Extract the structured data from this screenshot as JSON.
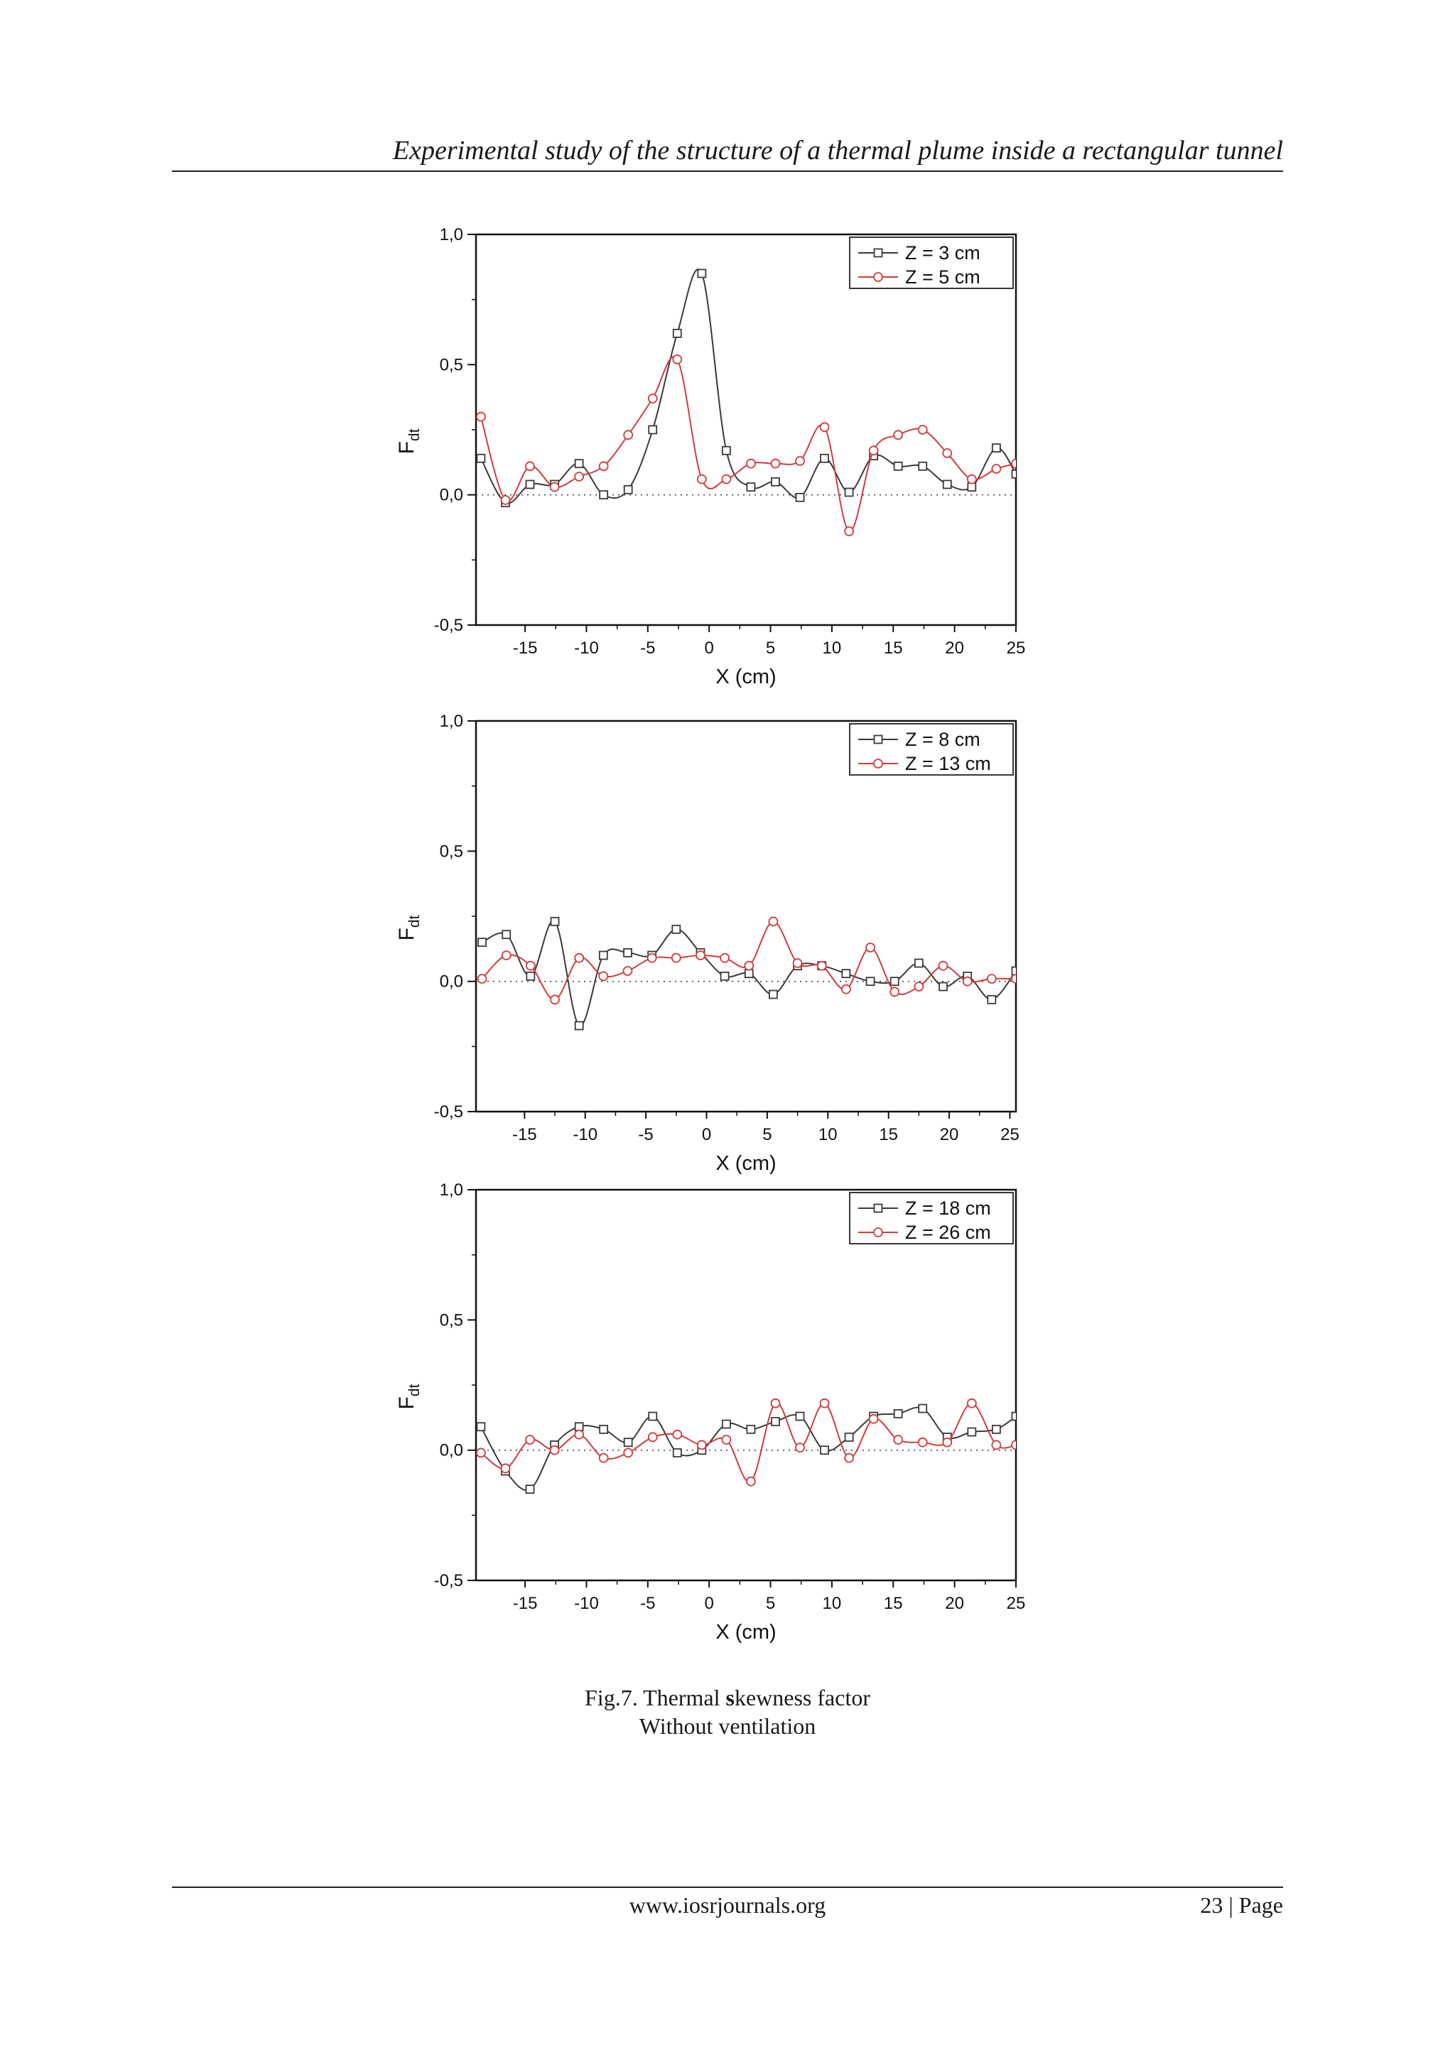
{
  "header": {
    "running_title": "Experimental study of the structure of a thermal plume inside a rectangular tunnel"
  },
  "figure": {
    "caption_prefix": "Fig.7. Thermal ",
    "caption_bold": "s",
    "caption_rest": "kewness factor",
    "caption_line2": "Without ventilation"
  },
  "footer": {
    "url": "www.iosrjournals.org",
    "page": "23 | Page"
  },
  "colors": {
    "series1": "#3a3a3a",
    "series2": "#d23c3c"
  },
  "chart_data": [
    {
      "type": "line",
      "xlabel": "X (cm)",
      "ylabel": "F",
      "ylabel_sub": "dt",
      "xlim": [
        -19,
        25
      ],
      "ylim": [
        -0.5,
        1.0
      ],
      "x_ticks": [
        -15,
        -10,
        -5,
        0,
        5,
        10,
        15,
        20,
        25
      ],
      "y_ticks": [
        -0.5,
        0.0,
        0.5,
        1.0
      ],
      "y_tick_labels": [
        "-0,5",
        "0,0",
        "0,5",
        "1,0"
      ],
      "legend_position": "top-right",
      "grid": false,
      "series": [
        {
          "name": "Z = 3 cm",
          "marker": "square",
          "points": [
            [
              -18.6,
              0.14
            ],
            [
              -16.6,
              -0.03
            ],
            [
              -14.6,
              0.04
            ],
            [
              -12.6,
              0.04
            ],
            [
              -10.6,
              0.12
            ],
            [
              -8.6,
              0.0
            ],
            [
              -6.6,
              0.02
            ],
            [
              -4.6,
              0.25
            ],
            [
              -2.6,
              0.62
            ],
            [
              -0.6,
              0.85
            ],
            [
              1.4,
              0.17
            ],
            [
              3.4,
              0.03
            ],
            [
              5.4,
              0.05
            ],
            [
              7.4,
              -0.01
            ],
            [
              9.4,
              0.14
            ],
            [
              11.4,
              0.01
            ],
            [
              13.4,
              0.15
            ],
            [
              15.4,
              0.11
            ],
            [
              17.4,
              0.11
            ],
            [
              19.4,
              0.04
            ],
            [
              21.4,
              0.03
            ],
            [
              23.4,
              0.18
            ],
            [
              25.0,
              0.08
            ]
          ]
        },
        {
          "name": "Z = 5 cm",
          "marker": "circle",
          "points": [
            [
              -18.6,
              0.3
            ],
            [
              -16.6,
              -0.02
            ],
            [
              -14.6,
              0.11
            ],
            [
              -12.6,
              0.03
            ],
            [
              -10.6,
              0.07
            ],
            [
              -8.6,
              0.11
            ],
            [
              -6.6,
              0.23
            ],
            [
              -4.6,
              0.37
            ],
            [
              -2.6,
              0.52
            ],
            [
              -0.6,
              0.06
            ],
            [
              1.4,
              0.06
            ],
            [
              3.4,
              0.12
            ],
            [
              5.4,
              0.12
            ],
            [
              7.4,
              0.13
            ],
            [
              9.4,
              0.26
            ],
            [
              11.4,
              -0.14
            ],
            [
              13.4,
              0.17
            ],
            [
              15.4,
              0.23
            ],
            [
              17.4,
              0.25
            ],
            [
              19.4,
              0.16
            ],
            [
              21.4,
              0.06
            ],
            [
              23.4,
              0.1
            ],
            [
              25.0,
              0.12
            ]
          ]
        }
      ]
    },
    {
      "type": "line",
      "xlabel": "X (cm)",
      "ylabel": "F",
      "ylabel_sub": "dt",
      "xlim": [
        -19,
        25.5
      ],
      "ylim": [
        -0.5,
        1.0
      ],
      "x_ticks": [
        -15,
        -10,
        -5,
        0,
        5,
        10,
        15,
        20,
        25
      ],
      "y_ticks": [
        -0.5,
        0.0,
        0.5,
        1.0
      ],
      "y_tick_labels": [
        "-0,5",
        "0,0",
        "0,5",
        "1,0"
      ],
      "legend_position": "top-right",
      "grid": false,
      "series": [
        {
          "name": "Z = 8 cm",
          "marker": "square",
          "points": [
            [
              -18.5,
              0.15
            ],
            [
              -16.5,
              0.18
            ],
            [
              -14.5,
              0.02
            ],
            [
              -12.5,
              0.23
            ],
            [
              -10.5,
              -0.17
            ],
            [
              -8.5,
              0.1
            ],
            [
              -6.5,
              0.11
            ],
            [
              -4.5,
              0.1
            ],
            [
              -2.5,
              0.2
            ],
            [
              -0.5,
              0.11
            ],
            [
              1.5,
              0.02
            ],
            [
              3.5,
              0.03
            ],
            [
              5.5,
              -0.05
            ],
            [
              7.5,
              0.06
            ],
            [
              9.5,
              0.06
            ],
            [
              11.5,
              0.03
            ],
            [
              13.5,
              0.0
            ],
            [
              15.5,
              0.0
            ],
            [
              17.5,
              0.07
            ],
            [
              19.5,
              -0.02
            ],
            [
              21.5,
              0.02
            ],
            [
              23.5,
              -0.07
            ],
            [
              25.5,
              0.04
            ]
          ]
        },
        {
          "name": "Z = 13 cm",
          "marker": "circle",
          "points": [
            [
              -18.5,
              0.01
            ],
            [
              -16.5,
              0.1
            ],
            [
              -14.5,
              0.06
            ],
            [
              -12.5,
              -0.07
            ],
            [
              -10.5,
              0.09
            ],
            [
              -8.5,
              0.02
            ],
            [
              -6.5,
              0.04
            ],
            [
              -4.5,
              0.09
            ],
            [
              -2.5,
              0.09
            ],
            [
              -0.5,
              0.1
            ],
            [
              1.5,
              0.09
            ],
            [
              3.5,
              0.06
            ],
            [
              5.5,
              0.23
            ],
            [
              7.5,
              0.07
            ],
            [
              9.5,
              0.06
            ],
            [
              11.5,
              -0.03
            ],
            [
              13.5,
              0.13
            ],
            [
              15.5,
              -0.04
            ],
            [
              17.5,
              -0.02
            ],
            [
              19.5,
              0.06
            ],
            [
              21.5,
              0.0
            ],
            [
              23.5,
              0.01
            ],
            [
              25.5,
              0.01
            ]
          ]
        }
      ]
    },
    {
      "type": "line",
      "xlabel": "X (cm)",
      "ylabel": "F",
      "ylabel_sub": "dt",
      "xlim": [
        -19,
        25
      ],
      "ylim": [
        -0.5,
        1.0
      ],
      "x_ticks": [
        -15,
        -10,
        -5,
        0,
        5,
        10,
        15,
        20,
        25
      ],
      "y_ticks": [
        -0.5,
        0.0,
        0.5,
        1.0
      ],
      "y_tick_labels": [
        "-0,5",
        "0,0",
        "0,5",
        "1,0"
      ],
      "legend_position": "top-right",
      "grid": false,
      "series": [
        {
          "name": "Z = 18 cm",
          "marker": "square",
          "points": [
            [
              -18.6,
              0.09
            ],
            [
              -16.6,
              -0.08
            ],
            [
              -14.6,
              -0.15
            ],
            [
              -12.6,
              0.02
            ],
            [
              -10.6,
              0.09
            ],
            [
              -8.6,
              0.08
            ],
            [
              -6.6,
              0.03
            ],
            [
              -4.6,
              0.13
            ],
            [
              -2.6,
              -0.01
            ],
            [
              -0.6,
              0.0
            ],
            [
              1.4,
              0.1
            ],
            [
              3.4,
              0.08
            ],
            [
              5.4,
              0.11
            ],
            [
              7.4,
              0.13
            ],
            [
              9.4,
              0.0
            ],
            [
              11.4,
              0.05
            ],
            [
              13.4,
              0.13
            ],
            [
              15.4,
              0.14
            ],
            [
              17.4,
              0.16
            ],
            [
              19.4,
              0.05
            ],
            [
              21.4,
              0.07
            ],
            [
              23.4,
              0.08
            ],
            [
              25.0,
              0.13
            ]
          ]
        },
        {
          "name": "Z = 26 cm",
          "marker": "circle",
          "points": [
            [
              -18.6,
              -0.01
            ],
            [
              -16.6,
              -0.07
            ],
            [
              -14.6,
              0.04
            ],
            [
              -12.6,
              0.0
            ],
            [
              -10.6,
              0.06
            ],
            [
              -8.6,
              -0.03
            ],
            [
              -6.6,
              -0.01
            ],
            [
              -4.6,
              0.05
            ],
            [
              -2.6,
              0.06
            ],
            [
              -0.6,
              0.02
            ],
            [
              1.4,
              0.04
            ],
            [
              3.4,
              -0.12
            ],
            [
              5.4,
              0.18
            ],
            [
              7.4,
              0.01
            ],
            [
              9.4,
              0.18
            ],
            [
              11.4,
              -0.03
            ],
            [
              13.4,
              0.12
            ],
            [
              15.4,
              0.04
            ],
            [
              17.4,
              0.03
            ],
            [
              19.4,
              0.03
            ],
            [
              21.4,
              0.18
            ],
            [
              23.4,
              0.02
            ],
            [
              25.0,
              0.02
            ]
          ]
        }
      ]
    }
  ]
}
